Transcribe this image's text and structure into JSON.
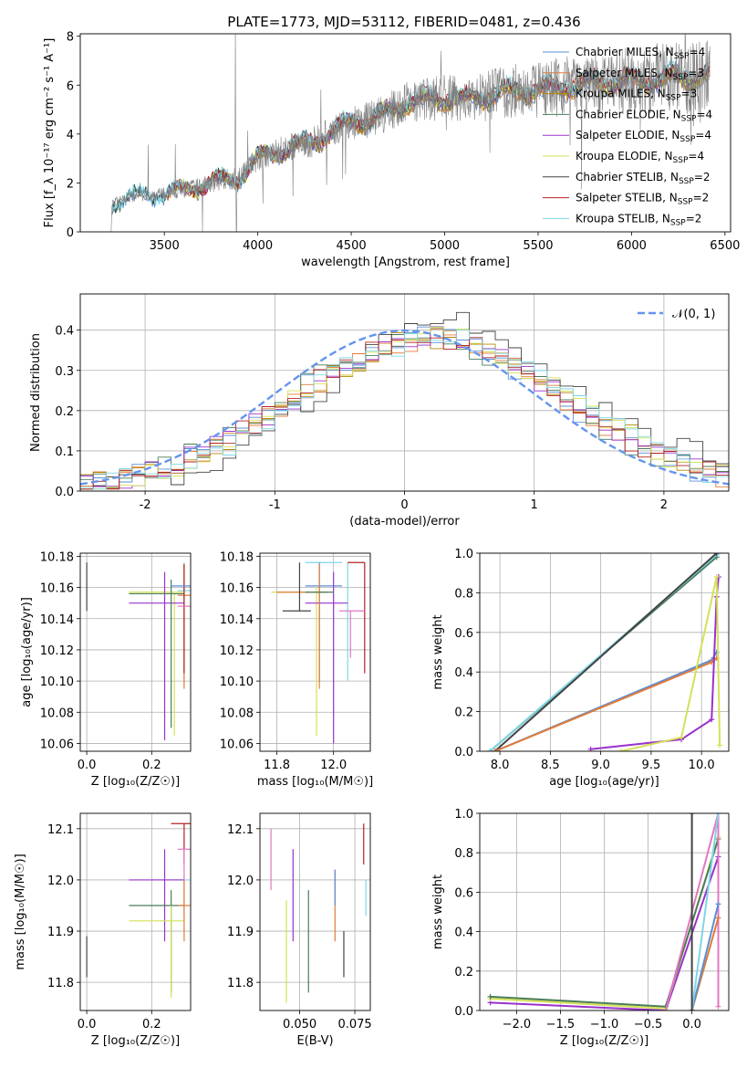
{
  "figure_title": "PLATE=1773, MJD=53112, FIBERID=0481, z=0.436",
  "chart_data": [
    {
      "id": "spectrum",
      "type": "line",
      "xlabel": "wavelength [Angstrom, rest frame]",
      "ylabel": "Flux [f_λ 10⁻¹⁷ erg cm⁻² s⁻¹ A⁻¹]",
      "xlim": [
        3050,
        6530
      ],
      "ylim": [
        0,
        8.1
      ],
      "xticks": [
        3500,
        4000,
        4500,
        5000,
        5500,
        6000,
        6500
      ],
      "yticks": [
        0,
        2,
        4,
        6,
        8
      ],
      "grid": false,
      "legend_position": "top-right",
      "legend": [
        {
          "label": "Chabrier MILES, N",
          "sub": "SSP",
          "suffix": "=4",
          "color": "#5b8fd6"
        },
        {
          "label": "Salpeter MILES, N",
          "sub": "SSP",
          "suffix": "=3",
          "color": "#e07b39"
        },
        {
          "label": "Kroupa MILES, N",
          "sub": "SSP",
          "suffix": "=3",
          "color": "#b8860b"
        },
        {
          "label": "Chabrier ELODIE, N",
          "sub": "SSP",
          "suffix": "=4",
          "color": "#4a7c59"
        },
        {
          "label": "Salpeter ELODIE, N",
          "sub": "SSP",
          "suffix": "=4",
          "color": "#9932cc"
        },
        {
          "label": "Kroupa ELODIE, N",
          "sub": "SSP",
          "suffix": "=4",
          "color": "#d4e157"
        },
        {
          "label": "Chabrier STELIB, N",
          "sub": "SSP",
          "suffix": "=2",
          "color": "#444444"
        },
        {
          "label": "Salpeter STELIB, N",
          "sub": "SSP",
          "suffix": "=2",
          "color": "#b22222"
        },
        {
          "label": "Kroupa STELIB, N",
          "sub": "SSP",
          "suffix": "=2",
          "color": "#7fd6e6"
        }
      ],
      "continuum": {
        "x": [
          3220,
          3300,
          3400,
          3500,
          3600,
          3700,
          3800,
          3900,
          4000,
          4100,
          4200,
          4300,
          4400,
          4500,
          4600,
          4700,
          4800,
          4900,
          5000,
          5100,
          5200,
          5300,
          5400,
          5500,
          5600,
          5700,
          5800,
          5900,
          6000,
          6100,
          6200,
          6300,
          6400
        ],
        "y": [
          1.2,
          1.4,
          1.5,
          1.55,
          1.7,
          1.9,
          2.1,
          2.2,
          3.0,
          3.3,
          3.5,
          3.7,
          4.1,
          4.5,
          4.6,
          4.9,
          5.3,
          5.4,
          5.5,
          5.4,
          5.5,
          5.7,
          5.8,
          5.8,
          5.9,
          6.0,
          6.1,
          6.1,
          6.2,
          6.2,
          6.3,
          6.3,
          6.4
        ]
      }
    },
    {
      "id": "residuals",
      "type": "line",
      "xlabel": "(data-model)/error",
      "ylabel": "Normed distribution",
      "xlim": [
        -2.5,
        2.5
      ],
      "ylim": [
        0,
        0.49
      ],
      "xticks": [
        -2,
        -1,
        0,
        1,
        2
      ],
      "yticks": [
        0.0,
        0.1,
        0.2,
        0.3,
        0.4
      ],
      "grid": true,
      "legend_position": "top-right",
      "legend": [
        {
          "label": "𝒩(0, 1)",
          "color": "#6495ed",
          "style": "dashed"
        }
      ],
      "gaussian": {
        "mean": 0,
        "sigma": 1
      }
    },
    {
      "id": "Z-age",
      "type": "scatter",
      "xlabel": "Z [log₁₀(Z/Z☉)]",
      "ylabel": "age  [log₁₀(age/yr)]",
      "xlim": [
        -0.02,
        0.32
      ],
      "ylim": [
        10.055,
        10.182
      ],
      "xticks": [
        0.0,
        0.2
      ],
      "yticks": [
        10.06,
        10.08,
        10.1,
        10.12,
        10.14,
        10.16,
        10.18
      ],
      "grid": true
    },
    {
      "id": "mass-age",
      "type": "scatter",
      "xlabel": "mass [log₁₀(M/M☉)]",
      "ylabel": "",
      "xlim": [
        11.74,
        12.13
      ],
      "ylim": [
        10.055,
        10.182
      ],
      "xticks": [
        11.8,
        12.0
      ],
      "yticks": [
        10.06,
        10.08,
        10.1,
        10.12,
        10.14,
        10.16,
        10.18
      ],
      "grid": true
    },
    {
      "id": "age-weight",
      "type": "line",
      "xlabel": "age  [log₁₀(age/yr)]",
      "ylabel": "mass weight",
      "xlim": [
        7.8,
        10.27
      ],
      "ylim": [
        0,
        1.0
      ],
      "xticks": [
        8.0,
        8.5,
        9.0,
        9.5,
        10.0
      ],
      "yticks": [
        0.0,
        0.2,
        0.4,
        0.6,
        0.8,
        1.0
      ],
      "grid": true,
      "series": [
        {
          "x": [
            7.9,
            10.15
          ],
          "y": [
            0.0,
            0.98
          ],
          "color": "#4a7c59"
        },
        {
          "x": [
            7.9,
            10.17
          ],
          "y": [
            0.0,
            1.0
          ],
          "color": "#7fd6e6"
        },
        {
          "x": [
            7.95,
            10.15
          ],
          "y": [
            0.0,
            1.0
          ],
          "color": "#444444"
        },
        {
          "x": [
            7.95,
            10.1,
            10.15
          ],
          "y": [
            0.0,
            0.46,
            0.5
          ],
          "color": "#5b8fd6"
        },
        {
          "x": [
            7.95,
            10.1,
            10.15
          ],
          "y": [
            0.0,
            0.45,
            0.47
          ],
          "color": "#e07b39"
        },
        {
          "x": [
            8.9,
            9.8,
            10.1,
            10.15,
            10.17
          ],
          "y": [
            0.01,
            0.06,
            0.16,
            0.78,
            0.88
          ],
          "color": "#9932cc"
        },
        {
          "x": [
            9.2,
            9.8,
            10.15,
            10.18
          ],
          "y": [
            0.0,
            0.07,
            0.88,
            0.03
          ],
          "color": "#d4e157"
        }
      ]
    },
    {
      "id": "Z-mass",
      "type": "scatter",
      "xlabel": "Z [log₁₀(Z/Z☉)]",
      "ylabel": "mass [log₁₀(M/M☉)]",
      "xlim": [
        -0.02,
        0.32
      ],
      "ylim": [
        11.745,
        12.13
      ],
      "xticks": [
        0.0,
        0.2
      ],
      "yticks": [
        11.8,
        11.9,
        12.0,
        12.1
      ],
      "grid": true
    },
    {
      "id": "ebv-mass",
      "type": "scatter",
      "xlabel": "E(B-V)",
      "ylabel": "",
      "xlim": [
        0.032,
        0.082
      ],
      "ylim": [
        11.745,
        12.13
      ],
      "xticks": [
        0.05,
        0.075
      ],
      "yticks": [
        11.8,
        11.9,
        12.0,
        12.1
      ],
      "grid": true
    },
    {
      "id": "Z-weight",
      "type": "line",
      "xlabel": "Z [log₁₀(Z/Z☉)]",
      "ylabel": "mass weight",
      "xlim": [
        -2.42,
        0.42
      ],
      "ylim": [
        0,
        1.0
      ],
      "xticks": [
        -2.0,
        -1.5,
        -1.0,
        -0.5,
        0.0
      ],
      "yticks": [
        0.0,
        0.2,
        0.4,
        0.6,
        0.8,
        1.0
      ],
      "grid": true,
      "series": [
        {
          "x": [
            -2.3,
            -0.3,
            0.3
          ],
          "y": [
            0.04,
            0.0,
            0.78
          ],
          "color": "#9932cc"
        },
        {
          "x": [
            -2.3,
            -0.3,
            0.3
          ],
          "y": [
            0.06,
            0.01,
            0.88
          ],
          "color": "#d4e157"
        },
        {
          "x": [
            -2.3,
            -0.3,
            0.3
          ],
          "y": [
            0.07,
            0.02,
            0.87
          ],
          "color": "#4a7c59"
        },
        {
          "x": [
            -0.3,
            0.3,
            0.3
          ],
          "y": [
            0.0,
            1.0,
            0.02
          ],
          "color": "#e377c2"
        },
        {
          "x": [
            0.0,
            0.3
          ],
          "y": [
            0.0,
            0.47
          ],
          "color": "#e07b39"
        },
        {
          "x": [
            0.0,
            0.3
          ],
          "y": [
            0.0,
            0.54
          ],
          "color": "#5b8fd6"
        },
        {
          "x": [
            0.0,
            0.3
          ],
          "y": [
            0.0,
            1.0
          ],
          "color": "#7fd6e6"
        },
        {
          "x": [
            0.0,
            0.0
          ],
          "y": [
            0.0,
            1.0
          ],
          "color": "#444444"
        }
      ]
    }
  ]
}
